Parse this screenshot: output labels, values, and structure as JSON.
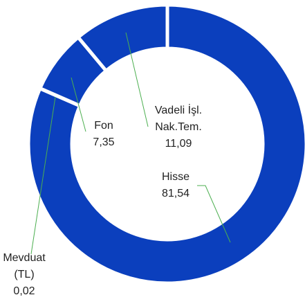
{
  "chart_data": {
    "type": "donut",
    "categories": [
      "Hisse",
      "Mevduat (TL)",
      "Fon",
      "Vadeli İşl. Nak.Tem."
    ],
    "values": [
      81.54,
      0.02,
      7.35,
      11.09
    ],
    "value_labels": [
      "81,54",
      "0,02",
      "7,35",
      "11,09"
    ],
    "color": "#0b3fbd"
  }
}
